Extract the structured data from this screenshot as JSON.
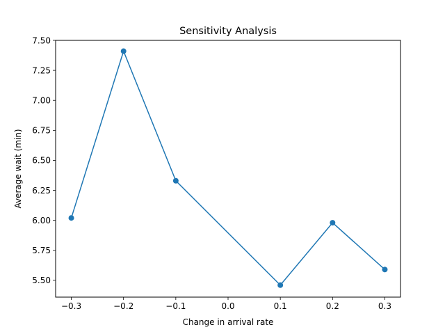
{
  "chart_data": {
    "type": "line",
    "title": "Sensitivity Analysis",
    "xlabel": "Change in arrival rate",
    "ylabel": "Average wait (min)",
    "xlim": [
      -0.33,
      0.33
    ],
    "ylim": [
      5.36,
      7.5
    ],
    "x_ticks": [
      -0.3,
      -0.2,
      -0.1,
      0.0,
      0.1,
      0.2,
      0.3
    ],
    "x_tick_labels": [
      "−0.3",
      "−0.2",
      "−0.1",
      "0.0",
      "0.1",
      "0.2",
      "0.3"
    ],
    "y_ticks": [
      5.5,
      5.75,
      6.0,
      6.25,
      6.5,
      6.75,
      7.0,
      7.25,
      7.5
    ],
    "y_tick_labels": [
      "5.50",
      "5.75",
      "6.00",
      "6.25",
      "6.50",
      "6.75",
      "7.00",
      "7.25",
      "7.50"
    ],
    "grid": false,
    "legend": "none",
    "series": [
      {
        "x": [
          -0.3,
          -0.2,
          -0.1,
          0.1,
          0.2,
          0.3
        ],
        "y": [
          6.02,
          7.41,
          6.33,
          5.46,
          5.98,
          5.59
        ],
        "color": "#1f77b4",
        "marker": "circle"
      }
    ]
  }
}
